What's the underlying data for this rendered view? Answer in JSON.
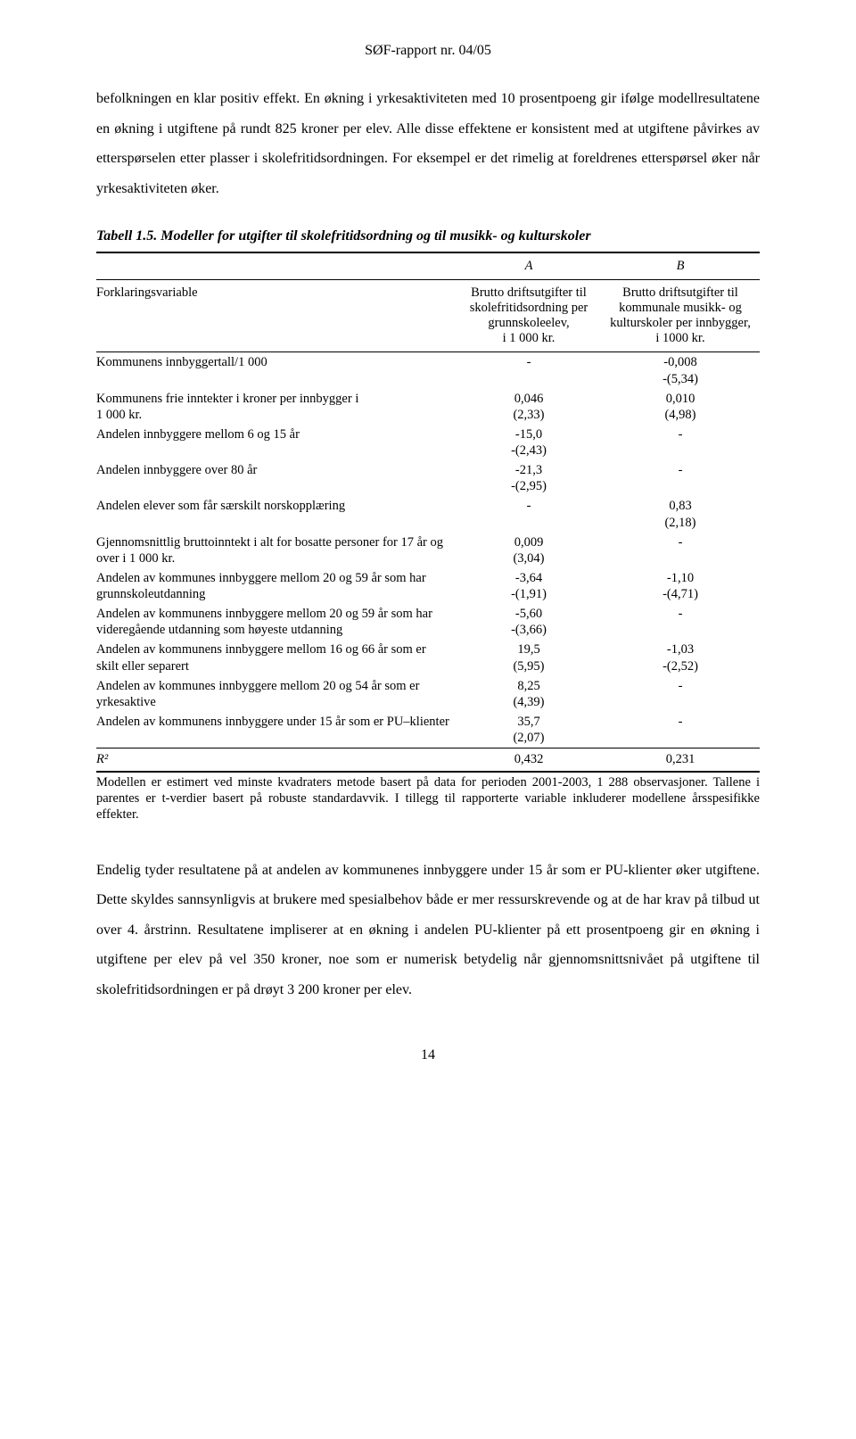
{
  "header": "SØF-rapport nr. 04/05",
  "para1": "befolkningen en klar positiv effekt. En økning i yrkesaktiviteten med 10 prosentpoeng gir ifølge modellresultatene en økning i utgiftene på rundt 825 kroner per elev. Alle disse effektene er konsistent med at utgiftene påvirkes av etterspørselen etter plasser i skolefritidsordningen. For eksempel er det rimelig at foreldrenes etterspørsel øker når yrkesaktiviteten øker.",
  "table": {
    "caption": "Tabell 1.5.  Modeller for utgifter til skolefritidsordning og til musikk- og kulturskoler",
    "col_a_letter": "A",
    "col_b_letter": "B",
    "varhead": "Forklaringsvariable",
    "col_a_head": "Brutto driftsutgifter til skolefritidsordning per grunnskoleelev,\ni 1 000 kr.",
    "col_b_head": "Brutto driftsutgifter til kommunale musikk- og kulturskoler per innbygger, i 1000 kr.",
    "rows": [
      {
        "var": "Kommunens innbyggertall/1 000",
        "a": "-",
        "b": "-0,008\n-(5,34)"
      },
      {
        "var": "Kommunens frie inntekter i kroner per innbygger i\n1 000 kr.",
        "a": "0,046\n(2,33)",
        "b": "0,010\n(4,98)"
      },
      {
        "var": "Andelen innbyggere mellom 6 og 15 år",
        "a": "-15,0\n-(2,43)",
        "b": "-"
      },
      {
        "var": "Andelen innbyggere over 80 år",
        "a": "-21,3\n-(2,95)",
        "b": "-"
      },
      {
        "var": "Andelen elever som får særskilt norskopplæring",
        "a": "-",
        "b": "0,83\n(2,18)"
      },
      {
        "var": "Gjennomsnittlig bruttoinntekt i alt for bosatte personer for 17 år og over i 1 000 kr.",
        "a": "0,009\n(3,04)",
        "b": "-"
      },
      {
        "var": "Andelen av kommunes innbyggere mellom 20 og 59 år som har grunnskoleutdanning",
        "a": "-3,64\n-(1,91)",
        "b": "-1,10\n-(4,71)"
      },
      {
        "var": "Andelen av kommunens innbyggere mellom 20 og 59 år som har videregående utdanning som høyeste utdanning",
        "a": "-5,60\n-(3,66)",
        "b": "-"
      },
      {
        "var": "Andelen av kommunens innbyggere mellom 16 og 66 år som er skilt eller separert",
        "a": "19,5\n(5,95)",
        "b": "-1,03\n-(2,52)"
      },
      {
        "var": "Andelen av kommunes innbyggere mellom 20 og 54 år som er yrkesaktive",
        "a": "8,25\n(4,39)",
        "b": "-"
      },
      {
        "var": "Andelen av kommunens innbyggere under 15 år som er PU–klienter",
        "a": "35,7\n(2,07)",
        "b": "-"
      }
    ],
    "r2_label": "R²",
    "r2_a": "0,432",
    "r2_b": "0,231",
    "note": "Modellen er estimert ved minste kvadraters metode basert på data for perioden 2001-2003, 1 288 observasjoner. Tallene i parentes er t-verdier basert på robuste standardavvik. I tillegg til rapporterte variable inkluderer modellene årsspesifikke effekter."
  },
  "para2": "Endelig tyder resultatene på at andelen av kommunenes innbyggere under 15 år som er PU-klienter øker utgiftene. Dette skyldes sannsynligvis at brukere med spesialbehov både er mer ressurskrevende og at de har krav på tilbud ut over 4. årstrinn. Resultatene impliserer at en økning i andelen PU-klienter på ett prosentpoeng gir en økning i utgiftene per elev på vel 350 kroner, noe som er numerisk betydelig når gjennomsnittsnivået på utgiftene til skolefritidsordningen er på drøyt 3 200 kroner per elev.",
  "pagenum": "14"
}
